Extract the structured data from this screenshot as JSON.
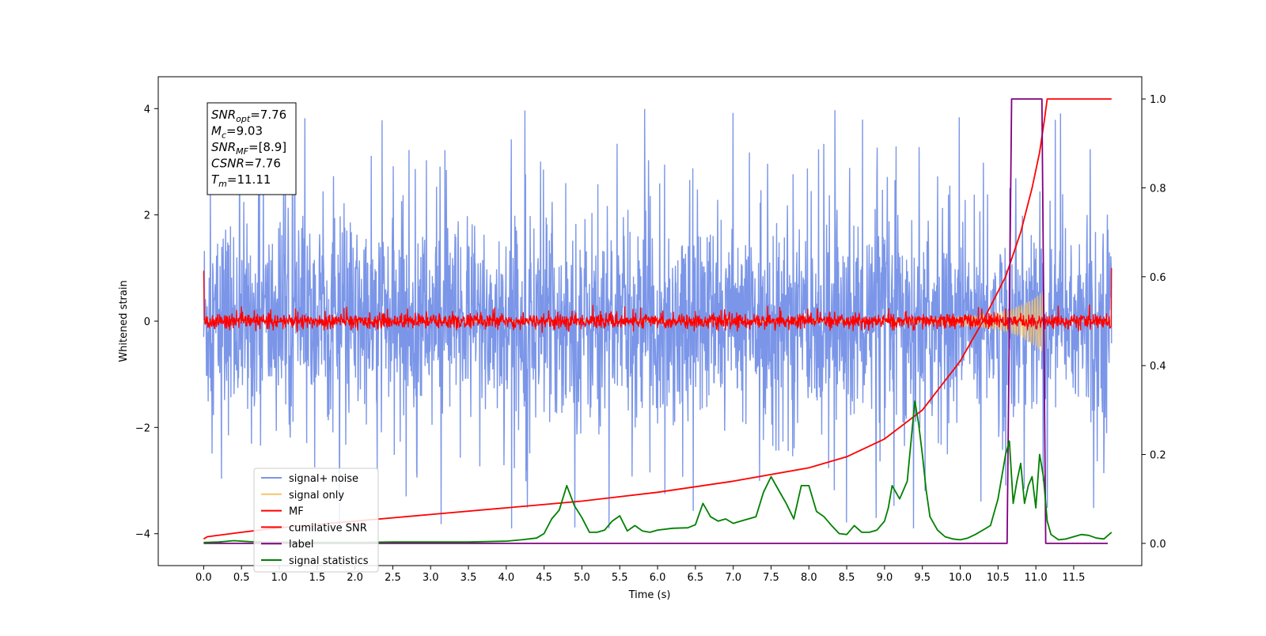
{
  "chart_data": {
    "type": "line",
    "xlabel": "Time (s)",
    "ylabel": "Whitened strain",
    "xticks": [
      0.0,
      0.5,
      1.0,
      1.5,
      2.0,
      2.5,
      3.0,
      3.5,
      4.0,
      4.5,
      5.0,
      5.5,
      6.0,
      6.5,
      7.0,
      7.5,
      8.0,
      8.5,
      9.0,
      9.5,
      10.0,
      10.5,
      11.0,
      11.5
    ],
    "xtick_labels": [
      "0.0",
      "0.5",
      "1.0",
      "1.5",
      "2.0",
      "2.5",
      "3.0",
      "3.5",
      "4.0",
      "4.5",
      "5.0",
      "5.5",
      "6.0",
      "6.5",
      "7.0",
      "7.5",
      "8.0",
      "8.5",
      "9.0",
      "9.5",
      "10.0",
      "10.5",
      "11.0",
      "11.5"
    ],
    "xlim": [
      -0.6,
      12.4
    ],
    "ylim_left": [
      -4.6,
      4.6
    ],
    "yticks_left": [
      -4,
      -2,
      0,
      2,
      4
    ],
    "ytick_labels_left": [
      "−4",
      "−2",
      "0",
      "2",
      "4"
    ],
    "ylim_right": [
      -0.05,
      1.05
    ],
    "yticks_right": [
      0.0,
      0.2,
      0.4,
      0.6,
      0.8,
      1.0
    ],
    "ytick_labels_right": [
      "0.0",
      "0.2",
      "0.4",
      "0.6",
      "0.8",
      "1.0"
    ],
    "grid": false,
    "legend_position": "lower-left",
    "annotation": {
      "lines": [
        {
          "main": "SNR",
          "sub": "opt",
          "rest": "=7.76"
        },
        {
          "main": "M",
          "sub": "c",
          "rest": "=9.03"
        },
        {
          "main": "SNR",
          "sub": "MF",
          "rest": "=[8.9]"
        },
        {
          "main": "CSNR",
          "sub": "",
          "rest": "=7.76"
        },
        {
          "main": "T",
          "sub": "m",
          "rest": "=11.11"
        }
      ]
    },
    "series": [
      {
        "name": "signal+ noise",
        "axis": "left",
        "color": "#7b96e8",
        "x_range": [
          0.0,
          12.0
        ],
        "envelope_upper": 2.3,
        "envelope_lower": -2.2,
        "peak_max": 4.2,
        "peak_min": -3.9
      },
      {
        "name": "signal only",
        "axis": "left",
        "color": "#f5c36b",
        "x": [
          0.0,
          9.0,
          9.6,
          10.0,
          10.3,
          10.6,
          10.8,
          11.0,
          11.1,
          11.11,
          11.12,
          12.0
        ],
        "amplitude": [
          0.01,
          0.02,
          0.05,
          0.08,
          0.12,
          0.2,
          0.3,
          0.48,
          0.6,
          0.65,
          0.0,
          0.0
        ]
      },
      {
        "name": "MF",
        "axis": "left",
        "color": "#ff0000",
        "x_range": [
          0.0,
          12.0
        ],
        "start": 0.95,
        "band": 0.12,
        "peak_max": 0.35,
        "peak_min": -0.18,
        "end": 1.0
      },
      {
        "name": "cumilative SNR",
        "axis": "right",
        "color": "#ff0000",
        "x": [
          0.0,
          0.05,
          0.5,
          1.0,
          2.0,
          3.0,
          4.0,
          5.0,
          6.0,
          7.0,
          8.0,
          8.5,
          9.0,
          9.5,
          10.0,
          10.3,
          10.6,
          10.8,
          10.95,
          11.05,
          11.11,
          11.15,
          12.0
        ],
        "y": [
          0.01,
          0.015,
          0.025,
          0.035,
          0.05,
          0.065,
          0.08,
          0.095,
          0.115,
          0.14,
          0.17,
          0.195,
          0.235,
          0.3,
          0.41,
          0.5,
          0.6,
          0.7,
          0.8,
          0.88,
          0.95,
          1.0,
          1.0
        ]
      },
      {
        "name": "label",
        "axis": "right",
        "color": "#800080",
        "x": [
          0.0,
          10.62,
          10.68,
          11.08,
          11.13,
          11.95
        ],
        "y": [
          0.0,
          0.0,
          1.0,
          1.0,
          0.0,
          0.0
        ]
      },
      {
        "name": "signal statistics",
        "axis": "right",
        "color": "#008000",
        "x": [
          0.0,
          0.2,
          0.4,
          0.6,
          0.8,
          1.0,
          1.5,
          2.0,
          2.5,
          3.0,
          3.5,
          4.0,
          4.2,
          4.4,
          4.5,
          4.6,
          4.7,
          4.8,
          4.9,
          5.0,
          5.1,
          5.2,
          5.3,
          5.4,
          5.5,
          5.6,
          5.7,
          5.8,
          5.9,
          6.0,
          6.2,
          6.4,
          6.5,
          6.6,
          6.7,
          6.8,
          6.9,
          7.0,
          7.1,
          7.2,
          7.3,
          7.4,
          7.5,
          7.6,
          7.7,
          7.8,
          7.9,
          8.0,
          8.1,
          8.2,
          8.3,
          8.4,
          8.5,
          8.6,
          8.7,
          8.8,
          8.9,
          9.0,
          9.05,
          9.1,
          9.2,
          9.25,
          9.3,
          9.35,
          9.4,
          9.45,
          9.5,
          9.55,
          9.6,
          9.7,
          9.8,
          9.9,
          10.0,
          10.1,
          10.2,
          10.3,
          10.4,
          10.5,
          10.55,
          10.6,
          10.65,
          10.7,
          10.75,
          10.8,
          10.85,
          10.9,
          10.95,
          11.0,
          11.05,
          11.1,
          11.15,
          11.2,
          11.3,
          11.4,
          11.5,
          11.6,
          11.7,
          11.8,
          11.9,
          12.0
        ],
        "y": [
          0.002,
          0.003,
          0.006,
          0.004,
          0.003,
          0.003,
          0.002,
          0.002,
          0.003,
          0.003,
          0.003,
          0.005,
          0.008,
          0.012,
          0.022,
          0.055,
          0.075,
          0.13,
          0.085,
          0.058,
          0.025,
          0.025,
          0.03,
          0.05,
          0.062,
          0.028,
          0.04,
          0.028,
          0.025,
          0.03,
          0.034,
          0.035,
          0.042,
          0.09,
          0.06,
          0.05,
          0.055,
          0.045,
          0.05,
          0.055,
          0.06,
          0.115,
          0.15,
          0.12,
          0.09,
          0.055,
          0.13,
          0.13,
          0.072,
          0.06,
          0.04,
          0.022,
          0.02,
          0.04,
          0.025,
          0.025,
          0.03,
          0.05,
          0.08,
          0.13,
          0.1,
          0.12,
          0.14,
          0.23,
          0.32,
          0.27,
          0.2,
          0.12,
          0.06,
          0.03,
          0.015,
          0.01,
          0.008,
          0.012,
          0.02,
          0.03,
          0.04,
          0.1,
          0.15,
          0.2,
          0.23,
          0.09,
          0.14,
          0.18,
          0.09,
          0.13,
          0.15,
          0.08,
          0.2,
          0.15,
          0.05,
          0.02,
          0.008,
          0.01,
          0.015,
          0.02,
          0.018,
          0.012,
          0.01,
          0.025
        ]
      }
    ]
  }
}
